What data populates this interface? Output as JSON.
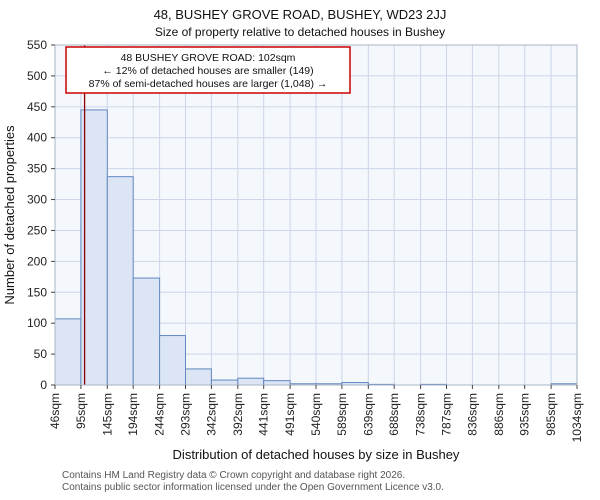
{
  "title": "48, BUSHEY GROVE ROAD, BUSHEY, WD23 2JJ",
  "subtitle": "Size of property relative to detached houses in Bushey",
  "footer": {
    "line1": "Contains HM Land Registry data © Crown copyright and database right 2026.",
    "line2": "Contains public sector information licensed under the Open Government Licence v3.0."
  },
  "chart_data": {
    "type": "bar",
    "title": "48, BUSHEY GROVE ROAD, BUSHEY, WD23 2JJ",
    "subtitle": "Size of property relative to detached houses in Bushey",
    "xlabel": "Distribution of detached houses by size in Bushey",
    "ylabel": "Number of detached properties",
    "bin_edges_sqm": [
      46,
      95,
      145,
      194,
      244,
      293,
      342,
      392,
      441,
      491,
      540,
      589,
      639,
      688,
      738,
      787,
      836,
      886,
      935,
      985,
      1034
    ],
    "bin_labels": [
      "46sqm",
      "95sqm",
      "145sqm",
      "194sqm",
      "244sqm",
      "293sqm",
      "342sqm",
      "392sqm",
      "441sqm",
      "491sqm",
      "540sqm",
      "589sqm",
      "639sqm",
      "688sqm",
      "738sqm",
      "787sqm",
      "836sqm",
      "886sqm",
      "935sqm",
      "985sqm",
      "1034sqm"
    ],
    "values": [
      107,
      445,
      337,
      173,
      80,
      26,
      8,
      11,
      7,
      2,
      2,
      4,
      1,
      0,
      1,
      0,
      0,
      0,
      0,
      2
    ],
    "ylim": [
      0,
      550
    ],
    "ytick_step": 50,
    "grid": true,
    "marker": {
      "value_sqm": 102,
      "color": "#8b0000"
    },
    "annotation": {
      "lines": [
        "48 BUSHEY GROVE ROAD: 102sqm",
        "← 12% of detached houses are smaller (149)",
        "87% of semi-detached houses are larger (1,048) →"
      ],
      "border_color": "#cc0000",
      "fill": "#ffffff"
    },
    "colors": {
      "bar_fill": "#dbe5f4",
      "bar_stroke": "#6288c2",
      "grid": "#ccd6e8",
      "plot_bg": "#f4f7fc",
      "plot_border": "#a9b4c6",
      "tick_text": "#222222"
    }
  }
}
